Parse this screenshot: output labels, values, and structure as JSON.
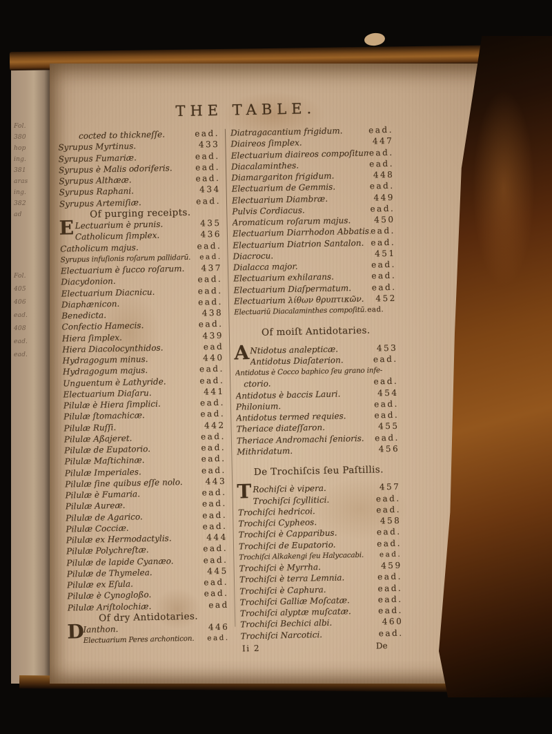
{
  "colors": {
    "background": "#0a0806",
    "page": "#cdb295",
    "page_deep": "#b4977b",
    "ink": "#43301c",
    "top_edge": "#8a5522",
    "leather": "#7c4414",
    "under_page": "#b29a80",
    "divider": "#5a4026"
  },
  "page": {
    "title": "THE TABLE.",
    "columns": {
      "left": [
        {
          "text": "cocted to thickneſſe.",
          "page": "ead.",
          "indent": true
        },
        {
          "text": "Syrupus Myrtinus.",
          "page": "433"
        },
        {
          "text": "Syrupus Fumariæ.",
          "page": "ead."
        },
        {
          "text": "Syrupus è Malis odoriferis.",
          "page": "ead."
        },
        {
          "text": "Syrupus Althææ.",
          "page": "ead."
        },
        {
          "text": "Syrupus Raphani.",
          "page": "434"
        },
        {
          "text": "Syrupus Artemiſiæ.",
          "page": "ead."
        },
        {
          "kind": "heading",
          "text": "Of purging receipts."
        },
        {
          "text": "Lectuarium è prunis.",
          "page": "435",
          "dropcap": "E"
        },
        {
          "text": "Catholicum ſimplex.",
          "page": "436",
          "pad": true
        },
        {
          "text": "Catholicum majus.",
          "page": "ead."
        },
        {
          "text": "Syrupus infuſionis roſarum pallidarū.",
          "page": "ead."
        },
        {
          "text": "Electuarium è ſucco roſarum.",
          "page": "437"
        },
        {
          "text": "Diacydonion.",
          "page": "ead."
        },
        {
          "text": "Electuarium Diacnicu.",
          "page": "ead."
        },
        {
          "text": "Diaphænicon.",
          "page": "ead."
        },
        {
          "text": "Benedicta.",
          "page": "438"
        },
        {
          "text": "Confectio Hamecis.",
          "page": "ead."
        },
        {
          "text": "Hiera ſimplex.",
          "page": "439"
        },
        {
          "text": "Hiera Diacolocynthidos.",
          "page": "ead"
        },
        {
          "text": "Hydragogum minus.",
          "page": "440"
        },
        {
          "text": "Hydragogum majus.",
          "page": "ead."
        },
        {
          "text": "Unguentum è Lathyride.",
          "page": "ead."
        },
        {
          "text": "Electuarium Diaſaru.",
          "page": "441"
        },
        {
          "text": "Pilulæ è Hiera ſimplici.",
          "page": "ead."
        },
        {
          "text": "Pilulæ ſtomachicæ.",
          "page": "ead."
        },
        {
          "text": "Pilulæ Ruſſi.",
          "page": "442"
        },
        {
          "text": "Pilulæ Aßajeret.",
          "page": "ead."
        },
        {
          "text": "Pilulæ de Eupatorio.",
          "page": "ead."
        },
        {
          "text": "Pilulæ Maſtichinæ.",
          "page": "ead."
        },
        {
          "text": "Pilulæ Imperiales.",
          "page": "ead."
        },
        {
          "text": "Pilulæ ſine quibus eſſe nolo.",
          "page": "443"
        },
        {
          "text": "Pilulæ è Fumaria.",
          "page": "ead."
        },
        {
          "text": "Pilulæ Aureæ.",
          "page": "ead."
        },
        {
          "text": "Pilulæ de Agarico.",
          "page": "ead."
        },
        {
          "text": "Pilulæ Cocciæ.",
          "page": "ead."
        },
        {
          "text": "Pilulæ ex Hermodactylis.",
          "page": "444"
        },
        {
          "text": "Pilulæ Polychreſtæ.",
          "page": "ead."
        },
        {
          "text": "Pilulæ de lapide Cyanæo.",
          "page": "ead."
        },
        {
          "text": "Pilulæ de Thymelea.",
          "page": "445"
        },
        {
          "text": "Pilulæ ex Eſula.",
          "page": "ead."
        },
        {
          "text": "Pilulæ è Cynogloßo.",
          "page": "ead."
        },
        {
          "text": "Pilulæ Ariſtolochiæ.",
          "page": "ead"
        },
        {
          "kind": "heading",
          "text": "Of dry Antidotaries."
        },
        {
          "text": "Ianthon.",
          "page": "446",
          "dropcap": "D"
        },
        {
          "text": "Electuarium Peres archonticon.",
          "page": "ead.",
          "pad": true
        }
      ],
      "right": [
        {
          "text": "Diatragacantium frigidum.",
          "page": "ead."
        },
        {
          "text": "Diaireos ſimplex.",
          "page": "447"
        },
        {
          "text": "Electuarium diaireos compoſitum.",
          "page": "ead."
        },
        {
          "text": "Diacalaminthes.",
          "page": "ead."
        },
        {
          "text": "Diamargariton frigidum.",
          "page": "448"
        },
        {
          "text": "Electuarium de Gemmis.",
          "page": "ead."
        },
        {
          "text": "Electuarium Diambræ.",
          "page": "449"
        },
        {
          "text": "Pulvis Cordiacus.",
          "page": "ead."
        },
        {
          "text": "Aromaticum roſarum majus.",
          "page": "450"
        },
        {
          "text": "Electuarium Diarrhodon Abbatis.",
          "page": "ead."
        },
        {
          "text": "Electuarium Diatrion Santalon.",
          "page": "ead."
        },
        {
          "text": "Diacrocu.",
          "page": "451"
        },
        {
          "text": "Dialacca major.",
          "page": "ead."
        },
        {
          "text": "Electuarium exhilarans.",
          "page": "ead."
        },
        {
          "text": "Electuarium Diaſpermatum.",
          "page": "ead."
        },
        {
          "text": "Electuarium λίθων θρυπτικῶν.",
          "page": "452"
        },
        {
          "text": "Electuariū Diacalaminthes compoſitū.",
          "page": "ead.",
          "runon": true
        },
        {
          "kind": "heading",
          "text": "Of moiſt Antidotaries.",
          "space": true
        },
        {
          "text": "Ntidotus analepticæ.",
          "page": "453",
          "dropcap": "A"
        },
        {
          "text": "Antidotus Diaſaterion.",
          "page": "ead.",
          "pad": true
        },
        {
          "text": "Antidotus è Cocco baphico ſeu grano infe-"
        },
        {
          "text": "ctorio.",
          "page": "ead.",
          "indent2": true
        },
        {
          "text": "Antidotus è baccis Lauri.",
          "page": "454"
        },
        {
          "text": "Philonium.",
          "page": "ead."
        },
        {
          "text": "Antidotus termed requies.",
          "page": "ead."
        },
        {
          "text": "Theriace diateſſaron.",
          "page": "455"
        },
        {
          "text": "Theriace Andromachi ſenioris.",
          "page": "ead."
        },
        {
          "text": "Mithridatum.",
          "page": "456"
        },
        {
          "kind": "heading",
          "text": "De Trochiſcis ſeu Paſtillis.",
          "space": true
        },
        {
          "text": "Rochiſci è vipera.",
          "page": "457",
          "dropcap": "T"
        },
        {
          "text": "Trochiſci ſcyllitici.",
          "page": "ead.",
          "pad": true
        },
        {
          "text": "Trochiſci hedricoi.",
          "page": "ead."
        },
        {
          "text": "Trochiſci Cypheos.",
          "page": "458"
        },
        {
          "text": "Trochiſci è Capparibus.",
          "page": "ead."
        },
        {
          "text": "Trochiſci de Eupatorio.",
          "page": "ead."
        },
        {
          "text": "Trochiſci Alkakengi ſeu Halycacabi.",
          "page": "ead."
        },
        {
          "text": "Trochiſci è Myrrha.",
          "page": "459"
        },
        {
          "text": "Trochiſci è terra Lemnia.",
          "page": "ead."
        },
        {
          "text": "Trochiſci è Caphura.",
          "page": "ead."
        },
        {
          "text": "Trochiſci Galliæ Moſcatæ.",
          "page": "ead."
        },
        {
          "text": "Trochiſci alyptæ muſcatæ.",
          "page": "ead."
        },
        {
          "text": "Trochiſci Bechici albi.",
          "page": "460"
        },
        {
          "text": "Trochiſci Narcotici.",
          "page": "ead."
        },
        {
          "kind": "footer",
          "text": "Ii 2",
          "page": "De"
        }
      ]
    }
  },
  "adjacent_page_fragments": [
    "Fol.",
    "380",
    "hop",
    "ing.",
    "381",
    "aras",
    "ing.",
    "382",
    "ad",
    "Fol.",
    "405",
    "406",
    "ead.",
    "408",
    "ead.",
    "ead."
  ]
}
